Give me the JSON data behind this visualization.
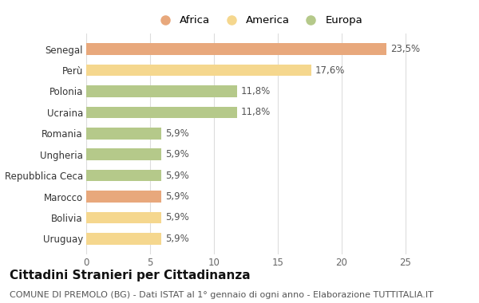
{
  "categories": [
    "Uruguay",
    "Bolivia",
    "Marocco",
    "Repubblica Ceca",
    "Ungheria",
    "Romania",
    "Ucraina",
    "Polonia",
    "Perù",
    "Senegal"
  ],
  "values": [
    5.9,
    5.9,
    5.9,
    5.9,
    5.9,
    5.9,
    11.8,
    11.8,
    17.6,
    23.5
  ],
  "labels": [
    "5,9%",
    "5,9%",
    "5,9%",
    "5,9%",
    "5,9%",
    "5,9%",
    "11,8%",
    "11,8%",
    "17,6%",
    "23,5%"
  ],
  "colors": [
    "#F5D78E",
    "#F5D78E",
    "#E8A87C",
    "#B5C98A",
    "#B5C98A",
    "#B5C98A",
    "#B5C98A",
    "#B5C98A",
    "#F5D78E",
    "#E8A87C"
  ],
  "legend_labels": [
    "Africa",
    "America",
    "Europa"
  ],
  "legend_colors": [
    "#E8A87C",
    "#F5D78E",
    "#B5C98A"
  ],
  "title": "Cittadini Stranieri per Cittadinanza",
  "subtitle": "COMUNE DI PREMOLO (BG) - Dati ISTAT al 1° gennaio di ogni anno - Elaborazione TUTTITALIA.IT",
  "xlim": [
    0,
    27
  ],
  "xticks": [
    0,
    5,
    10,
    15,
    20,
    25
  ],
  "bg_color": "#FFFFFF",
  "grid_color": "#DDDDDD",
  "bar_height": 0.55,
  "title_fontsize": 11,
  "subtitle_fontsize": 8,
  "label_fontsize": 8.5,
  "tick_fontsize": 8.5,
  "legend_fontsize": 9.5
}
